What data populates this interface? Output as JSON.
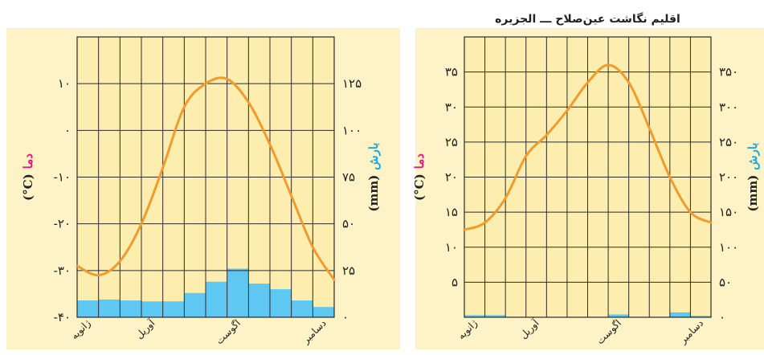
{
  "colors": {
    "panel_bg": "#fdf3c6",
    "plot_bg": "#fdeeb0",
    "grid": "#2a2a2a",
    "temperature_line": "#f39a2c",
    "precip_bar": "#5ec8f2",
    "temp_label": "#e6197e",
    "precip_label": "#1aa9e0"
  },
  "chart_data": [
    {
      "type": "bar+line",
      "title": "",
      "temperature_axis": {
        "label_word": "دما",
        "label_unit": "(°C)",
        "ylim": [
          -40,
          20
        ],
        "ticks": [
          {
            "v": -40,
            "t": "-۴۰"
          },
          {
            "v": -30,
            "t": "-۳۰"
          },
          {
            "v": -20,
            "t": "-۲۰"
          },
          {
            "v": -10,
            "t": "-۱۰"
          },
          {
            "v": 0,
            "t": "۰"
          },
          {
            "v": 10,
            "t": "۱۰"
          }
        ]
      },
      "precip_axis": {
        "label_word": "بارش",
        "label_unit": "(mm)",
        "ylim": [
          0,
          150
        ],
        "ticks": [
          {
            "v": 0,
            "t": "۰"
          },
          {
            "v": 25,
            "t": "۲۵"
          },
          {
            "v": 50,
            "t": "۵۰"
          },
          {
            "v": 75,
            "t": "۷۵"
          },
          {
            "v": 100,
            "t": "۱۰۰"
          },
          {
            "v": 125,
            "t": "۱۲۵"
          }
        ]
      },
      "months": 12,
      "month_labels": [
        {
          "i": 0,
          "t": "ژانویه"
        },
        {
          "i": 3,
          "t": "آوریل"
        },
        {
          "i": 7,
          "t": "اگوست"
        },
        {
          "i": 11,
          "t": "دسامبر"
        }
      ],
      "temperature": [
        -29,
        -31,
        -28,
        -20,
        -8,
        5,
        10,
        11,
        6,
        -3,
        -14,
        -25,
        -32
      ],
      "precipitation": [
        9,
        9.5,
        9,
        8.5,
        8.5,
        13,
        19,
        26,
        18,
        15,
        9,
        5.5
      ]
    },
    {
      "type": "bar+line",
      "title": "اقلیم نگاشت عین‌صلاح ـــ الجزیره",
      "temperature_axis": {
        "label_word": "دما",
        "label_unit": "(°C)",
        "ylim": [
          0,
          40
        ],
        "ticks": [
          {
            "v": 5,
            "t": "۵"
          },
          {
            "v": 10,
            "t": "۱۰"
          },
          {
            "v": 15,
            "t": "۱۵"
          },
          {
            "v": 20,
            "t": "۲۰"
          },
          {
            "v": 25,
            "t": "۲۵"
          },
          {
            "v": 30,
            "t": "۳۰"
          },
          {
            "v": 35,
            "t": "۳۵"
          }
        ]
      },
      "precip_axis": {
        "label_word": "بارش",
        "label_unit": "(mm)",
        "ylim": [
          0,
          400
        ],
        "ticks": [
          {
            "v": 0,
            "t": "۰"
          },
          {
            "v": 50,
            "t": "۵۰"
          },
          {
            "v": 100,
            "t": "۱۰۰"
          },
          {
            "v": 150,
            "t": "۱۵۰"
          },
          {
            "v": 200,
            "t": "۲۰۰"
          },
          {
            "v": 250,
            "t": "۲۵۰"
          },
          {
            "v": 300,
            "t": "۳۰۰"
          },
          {
            "v": 350,
            "t": "۳۵۰"
          }
        ]
      },
      "months": 12,
      "month_labels": [
        {
          "i": 0,
          "t": "ژانویه"
        },
        {
          "i": 3,
          "t": "آوریل"
        },
        {
          "i": 7,
          "t": "اگوست"
        },
        {
          "i": 11,
          "t": "دسامبر"
        }
      ],
      "temperature": [
        12.5,
        13.5,
        17,
        23,
        26,
        29.5,
        33.5,
        36,
        33.5,
        27,
        20,
        15,
        13.5
      ],
      "precipitation": [
        3,
        3,
        0,
        0,
        0,
        0,
        0,
        4,
        0,
        0,
        7,
        2
      ]
    }
  ]
}
